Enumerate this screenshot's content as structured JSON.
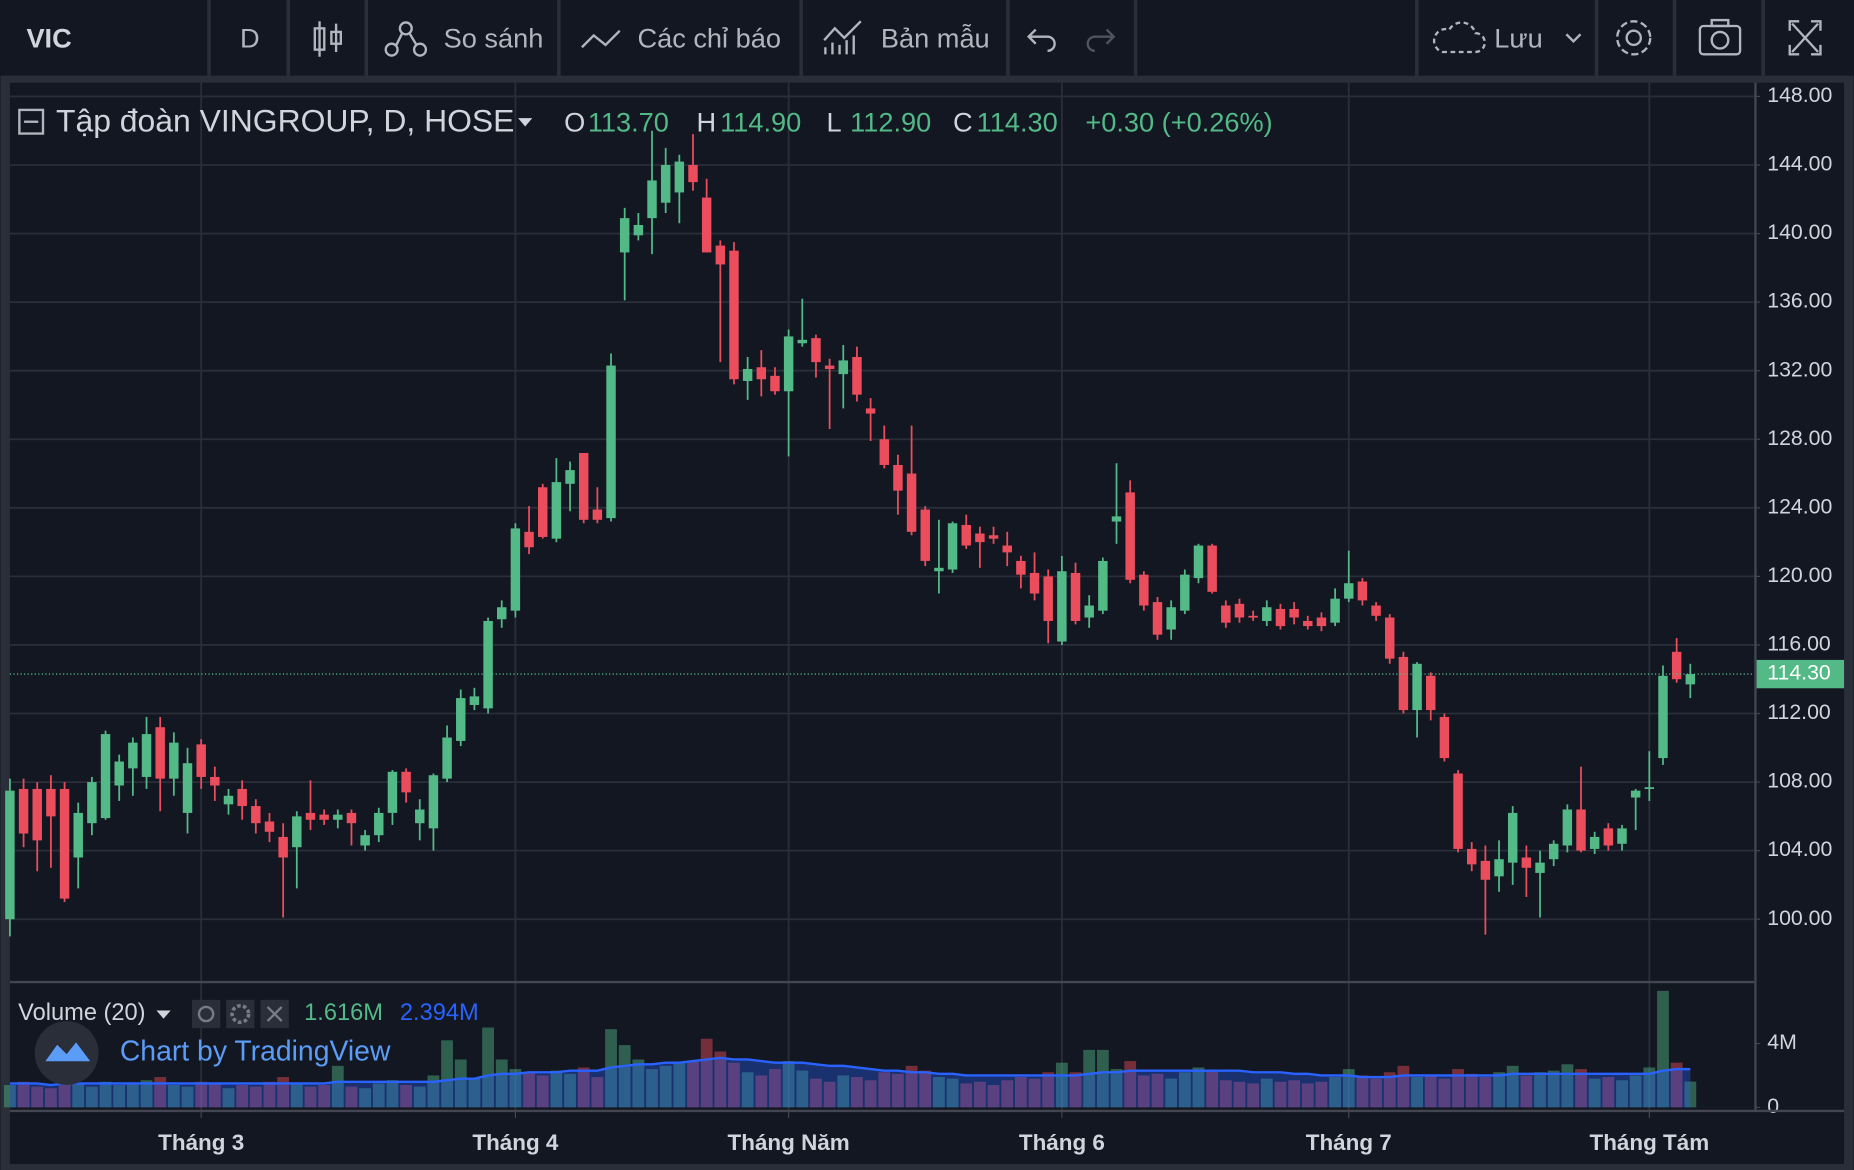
{
  "toolbar": {
    "symbol": "VIC",
    "interval": "D",
    "compare": "So sánh",
    "indicators": "Các chỉ báo",
    "templates": "Bản mẫu",
    "save": "Lưu"
  },
  "chart_data": {
    "type": "candlestick",
    "title": "Tập đoàn VINGROUP, D, HOSE",
    "ohlc_legend": [
      {
        "key": "O",
        "label": "113.70"
      },
      {
        "key": "H",
        "label": "114.90"
      },
      {
        "key": "L",
        "label": "112.90"
      },
      {
        "key": "C",
        "label": "114.30"
      }
    ],
    "change": "+0.30 (+0.26%)",
    "last_price_label": "114.30",
    "up_color": "#53b987",
    "down_color": "#eb4d5c",
    "grid": true,
    "ylim": [
      96.4,
      148.8
    ],
    "yticks": [
      {
        "value": 100,
        "label": "100.00"
      },
      {
        "value": 104,
        "label": "104.00"
      },
      {
        "value": 108,
        "label": "108.00"
      },
      {
        "value": 112,
        "label": "112.00"
      },
      {
        "value": 116,
        "label": "116.00"
      },
      {
        "value": 120,
        "label": "120.00"
      },
      {
        "value": 124,
        "label": "124.00"
      },
      {
        "value": 128,
        "label": "128.00"
      },
      {
        "value": 132,
        "label": "132.00"
      },
      {
        "value": 136,
        "label": "136.00"
      },
      {
        "value": 140,
        "label": "140.00"
      },
      {
        "value": 144,
        "label": "144.00"
      },
      {
        "value": 148,
        "label": "148.00"
      }
    ],
    "categories": [
      null,
      null,
      null,
      null,
      null,
      null,
      null,
      null,
      null,
      null,
      null,
      null,
      null,
      null,
      "Tháng 3",
      null,
      null,
      null,
      null,
      null,
      null,
      null,
      null,
      null,
      null,
      null,
      null,
      null,
      null,
      null,
      null,
      null,
      null,
      null,
      null,
      null,
      null,
      "Tháng 4",
      null,
      null,
      null,
      null,
      null,
      null,
      null,
      null,
      null,
      null,
      null,
      null,
      null,
      null,
      null,
      null,
      null,
      null,
      null,
      "Tháng Năm",
      null,
      null,
      null,
      null,
      null,
      null,
      null,
      null,
      null,
      null,
      null,
      null,
      null,
      null,
      null,
      null,
      null,
      null,
      null,
      "Tháng 6",
      null,
      null,
      null,
      null,
      null,
      null,
      null,
      null,
      null,
      null,
      null,
      null,
      null,
      null,
      null,
      null,
      null,
      null,
      null,
      null,
      "Tháng 7",
      null,
      null,
      null,
      null,
      null,
      null,
      null,
      null,
      null,
      null,
      null,
      null,
      null,
      null,
      null,
      null,
      null,
      null,
      null,
      null,
      null,
      "Tháng Tám",
      null,
      null,
      null
    ],
    "candles": [
      {
        "o": 100,
        "h": 108.2,
        "l": 99,
        "c": 107.5
      },
      {
        "o": 107.6,
        "h": 108.2,
        "l": 104.2,
        "c": 105
      },
      {
        "o": 107.6,
        "h": 108,
        "l": 102.8,
        "c": 104.6
      },
      {
        "o": 107.6,
        "h": 108.4,
        "l": 103,
        "c": 106
      },
      {
        "o": 107.6,
        "h": 108,
        "l": 101,
        "c": 101.2
      },
      {
        "o": 103.6,
        "h": 106.8,
        "l": 101.8,
        "c": 106.2
      },
      {
        "o": 105.6,
        "h": 108.3,
        "l": 104.9,
        "c": 108
      },
      {
        "o": 105.9,
        "h": 111,
        "l": 105.8,
        "c": 110.8
      },
      {
        "o": 107.8,
        "h": 109.6,
        "l": 106.9,
        "c": 109.2
      },
      {
        "o": 108.8,
        "h": 110.6,
        "l": 107.2,
        "c": 110.3
      },
      {
        "o": 108.3,
        "h": 111.8,
        "l": 107.6,
        "c": 110.8
      },
      {
        "o": 111.2,
        "h": 111.8,
        "l": 106.3,
        "c": 108.2
      },
      {
        "o": 108.2,
        "h": 110.9,
        "l": 107.2,
        "c": 110.3
      },
      {
        "o": 106.2,
        "h": 110,
        "l": 105,
        "c": 109.1
      },
      {
        "o": 110.2,
        "h": 110.5,
        "l": 107.6,
        "c": 108.3
      },
      {
        "o": 108.3,
        "h": 108.9,
        "l": 106.9,
        "c": 107.8
      },
      {
        "o": 106.7,
        "h": 107.6,
        "l": 106.1,
        "c": 107.2
      },
      {
        "o": 107.6,
        "h": 108.1,
        "l": 105.8,
        "c": 106.6
      },
      {
        "o": 106.6,
        "h": 107,
        "l": 105,
        "c": 105.6
      },
      {
        "o": 105.7,
        "h": 106.2,
        "l": 104.5,
        "c": 105.1
      },
      {
        "o": 104.8,
        "h": 105.6,
        "l": 100.1,
        "c": 103.6
      },
      {
        "o": 104.2,
        "h": 106.3,
        "l": 101.8,
        "c": 106
      },
      {
        "o": 106.2,
        "h": 108.1,
        "l": 105.2,
        "c": 105.8
      },
      {
        "o": 106.1,
        "h": 106.4,
        "l": 105.5,
        "c": 105.8
      },
      {
        "o": 105.8,
        "h": 106.4,
        "l": 105.3,
        "c": 106.1
      },
      {
        "o": 106.2,
        "h": 106.4,
        "l": 104.3,
        "c": 105.6
      },
      {
        "o": 104.3,
        "h": 105.2,
        "l": 104,
        "c": 104.9
      },
      {
        "o": 104.9,
        "h": 106.5,
        "l": 104.5,
        "c": 106.2
      },
      {
        "o": 106.2,
        "h": 108.7,
        "l": 105.5,
        "c": 108.6
      },
      {
        "o": 108.6,
        "h": 108.8,
        "l": 106.8,
        "c": 107.4
      },
      {
        "o": 105.6,
        "h": 107,
        "l": 104.6,
        "c": 106.4
      },
      {
        "o": 105.3,
        "h": 108.5,
        "l": 104,
        "c": 108.4
      },
      {
        "o": 108.2,
        "h": 111.3,
        "l": 108,
        "c": 110.6
      },
      {
        "o": 110.4,
        "h": 113.4,
        "l": 110.1,
        "c": 112.9
      },
      {
        "o": 112.5,
        "h": 113.5,
        "l": 112.2,
        "c": 113
      },
      {
        "o": 112.3,
        "h": 117.6,
        "l": 112,
        "c": 117.4
      },
      {
        "o": 117.5,
        "h": 118.6,
        "l": 117,
        "c": 118.2
      },
      {
        "o": 118,
        "h": 123.1,
        "l": 117.6,
        "c": 122.8
      },
      {
        "o": 122.6,
        "h": 124.1,
        "l": 121.3,
        "c": 121.7
      },
      {
        "o": 125.2,
        "h": 125.4,
        "l": 122.2,
        "c": 122.3
      },
      {
        "o": 122.2,
        "h": 126.9,
        "l": 122,
        "c": 125.5
      },
      {
        "o": 125.4,
        "h": 126.7,
        "l": 123.8,
        "c": 126.2
      },
      {
        "o": 127.2,
        "h": 127.2,
        "l": 123.1,
        "c": 123.3
      },
      {
        "o": 123.9,
        "h": 125.2,
        "l": 123.1,
        "c": 123.3
      },
      {
        "o": 123.4,
        "h": 133,
        "l": 123.2,
        "c": 132.3
      },
      {
        "o": 138.9,
        "h": 141.5,
        "l": 136.1,
        "c": 140.9
      },
      {
        "o": 139.9,
        "h": 141.2,
        "l": 139.6,
        "c": 140.5
      },
      {
        "o": 140.9,
        "h": 146,
        "l": 138.8,
        "c": 143.1
      },
      {
        "o": 141.8,
        "h": 145,
        "l": 141.2,
        "c": 144
      },
      {
        "o": 142.4,
        "h": 144.6,
        "l": 140.6,
        "c": 144.2
      },
      {
        "o": 144,
        "h": 145.8,
        "l": 142.5,
        "c": 143
      },
      {
        "o": 142.1,
        "h": 143.2,
        "l": 138.9,
        "c": 138.9
      },
      {
        "o": 139.3,
        "h": 139.6,
        "l": 132.5,
        "c": 138.2
      },
      {
        "o": 139,
        "h": 139.5,
        "l": 131.2,
        "c": 131.5
      },
      {
        "o": 131.4,
        "h": 132.8,
        "l": 130.3,
        "c": 132.1
      },
      {
        "o": 132.2,
        "h": 133.2,
        "l": 130.5,
        "c": 131.5
      },
      {
        "o": 131.7,
        "h": 132.2,
        "l": 130.6,
        "c": 130.8
      },
      {
        "o": 130.8,
        "h": 134.4,
        "l": 127,
        "c": 134
      },
      {
        "o": 133.6,
        "h": 136.2,
        "l": 133.4,
        "c": 133.8
      },
      {
        "o": 133.9,
        "h": 134.1,
        "l": 131.6,
        "c": 132.5
      },
      {
        "o": 132.3,
        "h": 132.7,
        "l": 128.6,
        "c": 132.1
      },
      {
        "o": 131.8,
        "h": 133.5,
        "l": 129.8,
        "c": 132.6
      },
      {
        "o": 132.8,
        "h": 133.4,
        "l": 130.2,
        "c": 130.6
      },
      {
        "o": 129.8,
        "h": 130.4,
        "l": 127.9,
        "c": 129.5
      },
      {
        "o": 128,
        "h": 128.8,
        "l": 126.3,
        "c": 126.5
      },
      {
        "o": 126.5,
        "h": 127.1,
        "l": 123.6,
        "c": 125
      },
      {
        "o": 126,
        "h": 128.8,
        "l": 122.4,
        "c": 122.6
      },
      {
        "o": 123.9,
        "h": 124.1,
        "l": 120.6,
        "c": 120.9
      },
      {
        "o": 120.3,
        "h": 123.3,
        "l": 119,
        "c": 120.5
      },
      {
        "o": 120.4,
        "h": 123.2,
        "l": 120.2,
        "c": 123.1
      },
      {
        "o": 123,
        "h": 123.6,
        "l": 121.6,
        "c": 121.8
      },
      {
        "o": 122.5,
        "h": 122.9,
        "l": 120.5,
        "c": 122
      },
      {
        "o": 122.4,
        "h": 122.9,
        "l": 121.9,
        "c": 122.2
      },
      {
        "o": 121.8,
        "h": 122.6,
        "l": 120.6,
        "c": 121.4
      },
      {
        "o": 120.9,
        "h": 121.2,
        "l": 119.3,
        "c": 120.1
      },
      {
        "o": 120.2,
        "h": 121.4,
        "l": 118.6,
        "c": 119
      },
      {
        "o": 120,
        "h": 120.4,
        "l": 116.1,
        "c": 117.4
      },
      {
        "o": 116.2,
        "h": 121.2,
        "l": 116,
        "c": 120.3
      },
      {
        "o": 120.2,
        "h": 120.8,
        "l": 117.2,
        "c": 117.4
      },
      {
        "o": 117.6,
        "h": 118.9,
        "l": 117,
        "c": 118.3
      },
      {
        "o": 118,
        "h": 121.1,
        "l": 117.8,
        "c": 120.9
      },
      {
        "o": 123.2,
        "h": 126.6,
        "l": 121.9,
        "c": 123.5
      },
      {
        "o": 124.9,
        "h": 125.6,
        "l": 119.6,
        "c": 119.8
      },
      {
        "o": 120.1,
        "h": 120.3,
        "l": 118,
        "c": 118.3
      },
      {
        "o": 118.5,
        "h": 118.8,
        "l": 116.3,
        "c": 116.6
      },
      {
        "o": 116.9,
        "h": 118.6,
        "l": 116.3,
        "c": 118.2
      },
      {
        "o": 118,
        "h": 120.4,
        "l": 117.8,
        "c": 120.1
      },
      {
        "o": 119.9,
        "h": 121.9,
        "l": 119.6,
        "c": 121.8
      },
      {
        "o": 121.8,
        "h": 121.9,
        "l": 119,
        "c": 119.1
      },
      {
        "o": 118.3,
        "h": 118.6,
        "l": 117,
        "c": 117.3
      },
      {
        "o": 118.4,
        "h": 118.7,
        "l": 117.3,
        "c": 117.6
      },
      {
        "o": 117.7,
        "h": 118,
        "l": 117.4,
        "c": 117.6
      },
      {
        "o": 117.4,
        "h": 118.6,
        "l": 117.1,
        "c": 118.2
      },
      {
        "o": 118.1,
        "h": 118.4,
        "l": 116.9,
        "c": 117.1
      },
      {
        "o": 118.1,
        "h": 118.5,
        "l": 117.2,
        "c": 117.6
      },
      {
        "o": 117.4,
        "h": 117.7,
        "l": 116.9,
        "c": 117.1
      },
      {
        "o": 117.6,
        "h": 117.9,
        "l": 116.8,
        "c": 117.1
      },
      {
        "o": 117.3,
        "h": 119.3,
        "l": 117.1,
        "c": 118.7
      },
      {
        "o": 118.7,
        "h": 121.5,
        "l": 118.5,
        "c": 119.6
      },
      {
        "o": 119.7,
        "h": 119.9,
        "l": 118.3,
        "c": 118.6
      },
      {
        "o": 118.3,
        "h": 118.5,
        "l": 117.4,
        "c": 117.7
      },
      {
        "o": 117.6,
        "h": 117.8,
        "l": 114.9,
        "c": 115.2
      },
      {
        "o": 115.3,
        "h": 115.6,
        "l": 112,
        "c": 112.2
      },
      {
        "o": 112.2,
        "h": 115,
        "l": 110.6,
        "c": 114.9
      },
      {
        "o": 114.2,
        "h": 114.4,
        "l": 111.6,
        "c": 112.2
      },
      {
        "o": 111.8,
        "h": 112,
        "l": 109.2,
        "c": 109.4
      },
      {
        "o": 108.5,
        "h": 108.7,
        "l": 103.9,
        "c": 104.1
      },
      {
        "o": 104.1,
        "h": 104.5,
        "l": 102.8,
        "c": 103.2
      },
      {
        "o": 103.4,
        "h": 104.3,
        "l": 99.1,
        "c": 102.3
      },
      {
        "o": 102.5,
        "h": 104.6,
        "l": 101.6,
        "c": 103.5
      },
      {
        "o": 103.3,
        "h": 106.6,
        "l": 102,
        "c": 106.2
      },
      {
        "o": 103.6,
        "h": 104.3,
        "l": 101.3,
        "c": 103
      },
      {
        "o": 102.7,
        "h": 104,
        "l": 100.1,
        "c": 103.3
      },
      {
        "o": 103.5,
        "h": 104.6,
        "l": 103.1,
        "c": 104.4
      },
      {
        "o": 104.3,
        "h": 106.7,
        "l": 103.9,
        "c": 106.4
      },
      {
        "o": 106.4,
        "h": 108.9,
        "l": 103.9,
        "c": 104
      },
      {
        "o": 104.1,
        "h": 105.1,
        "l": 103.8,
        "c": 104.8
      },
      {
        "o": 105.3,
        "h": 105.6,
        "l": 104,
        "c": 104.3
      },
      {
        "o": 104.4,
        "h": 105.5,
        "l": 104,
        "c": 105.3
      },
      {
        "o": 107.1,
        "h": 107.6,
        "l": 105.2,
        "c": 107.5
      },
      {
        "o": 107.6,
        "h": 109.8,
        "l": 106.9,
        "c": 107.7
      },
      {
        "o": 109.4,
        "h": 114.8,
        "l": 109,
        "c": 114.2
      },
      {
        "o": 115.6,
        "h": 116.4,
        "l": 113.8,
        "c": 114
      },
      {
        "o": 113.7,
        "h": 114.9,
        "l": 112.9,
        "c": 114.3
      }
    ],
    "volume": {
      "label": "Volume (20)",
      "legend_labels": [
        "1.616M",
        "2.394M"
      ],
      "ma_color": "#2962ff",
      "ylim": [
        0,
        7.7
      ],
      "yticks": [
        0,
        {
          "value": 4,
          "label": "4M"
        }
      ],
      "values": [
        1.4,
        1.6,
        1.3,
        1.2,
        1.8,
        1.5,
        1.3,
        1.6,
        1.4,
        1.5,
        1.7,
        1.9,
        1.4,
        1.3,
        1.6,
        1.5,
        1.2,
        1.4,
        1.3,
        1.6,
        1.9,
        1.5,
        1.3,
        1.4,
        2.6,
        1.3,
        1.2,
        1.5,
        1.7,
        1.4,
        1.3,
        2.0,
        4.2,
        3.0,
        1.8,
        5.0,
        3.0,
        2.4,
        2.2,
        2.0,
        2.3,
        2.1,
        2.5,
        1.9,
        4.9,
        3.9,
        3.0,
        2.4,
        2.6,
        2.8,
        2.9,
        4.3,
        3.5,
        2.8,
        2.2,
        2.0,
        2.4,
        2.9,
        2.3,
        1.8,
        1.6,
        2.0,
        1.9,
        1.7,
        2.2,
        2.1,
        2.6,
        2.3,
        1.9,
        1.8,
        1.5,
        1.6,
        1.4,
        1.7,
        1.9,
        1.8,
        2.2,
        2.8,
        2.2,
        3.6,
        3.6,
        2.4,
        2.9,
        2.0,
        2.1,
        1.8,
        2.2,
        2.5,
        2.3,
        1.7,
        1.6,
        1.5,
        1.8,
        1.6,
        1.7,
        1.5,
        1.6,
        1.9,
        2.4,
        2.0,
        1.8,
        2.2,
        2.6,
        1.9,
        2.0,
        1.8,
        2.4,
        2.1,
        1.9,
        2.2,
        2.6,
        2.0,
        2.2,
        2.3,
        2.7,
        2.4,
        1.8,
        1.9,
        1.7,
        2.0,
        2.5,
        7.3,
        2.8,
        1.616
      ],
      "ma": [
        1.5,
        1.5,
        1.5,
        1.4,
        1.5,
        1.5,
        1.5,
        1.5,
        1.5,
        1.5,
        1.5,
        1.5,
        1.5,
        1.5,
        1.5,
        1.5,
        1.5,
        1.5,
        1.5,
        1.5,
        1.5,
        1.5,
        1.5,
        1.5,
        1.6,
        1.6,
        1.6,
        1.6,
        1.6,
        1.6,
        1.6,
        1.6,
        1.7,
        1.8,
        1.8,
        2.0,
        2.1,
        2.1,
        2.2,
        2.2,
        2.2,
        2.3,
        2.3,
        2.3,
        2.5,
        2.6,
        2.7,
        2.7,
        2.8,
        2.8,
        2.9,
        3.0,
        3.1,
        3.0,
        3.0,
        2.9,
        2.8,
        2.8,
        2.8,
        2.7,
        2.6,
        2.6,
        2.5,
        2.4,
        2.3,
        2.3,
        2.2,
        2.2,
        2.1,
        2.1,
        2.0,
        2.0,
        2.0,
        2.0,
        2.0,
        2.0,
        2.0,
        2.0,
        2.0,
        2.1,
        2.2,
        2.2,
        2.3,
        2.3,
        2.3,
        2.3,
        2.3,
        2.3,
        2.3,
        2.3,
        2.3,
        2.2,
        2.2,
        2.2,
        2.1,
        2.1,
        2.0,
        2.0,
        2.0,
        1.9,
        1.9,
        1.9,
        2.0,
        2.0,
        2.0,
        2.0,
        2.0,
        2.0,
        2.0,
        2.0,
        2.1,
        2.1,
        2.1,
        2.1,
        2.1,
        2.1,
        2.1,
        2.1,
        2.1,
        2.1,
        2.1,
        2.3,
        2.4,
        2.394
      ]
    },
    "watermark": "Chart by TradingView"
  }
}
